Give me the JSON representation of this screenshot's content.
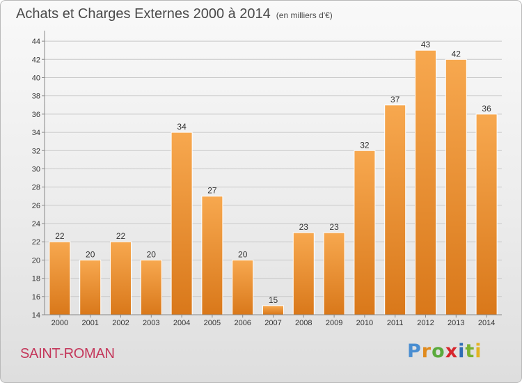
{
  "title": "Achats et Charges Externes 2000 à 2014",
  "unit": "(en milliers d'€)",
  "commune": "SAINT-ROMAN",
  "logo": {
    "text": "Proxiti",
    "colors": [
      "#4a8ed1",
      "#e08a1d",
      "#5aaa3c",
      "#d7262d",
      "#2f6db5",
      "#7ab22f",
      "#e3b321"
    ]
  },
  "colors": {
    "bar_light": "#f7a84f",
    "bar_dark": "#d9781a",
    "grid": "#c8c8c8",
    "axis_text": "#333333",
    "commune": "#c4365a"
  },
  "chart_data": {
    "type": "bar",
    "categories": [
      "2000",
      "2001",
      "2002",
      "2003",
      "2004",
      "2005",
      "2006",
      "2007",
      "2008",
      "2009",
      "2010",
      "2011",
      "2012",
      "2013",
      "2014"
    ],
    "values": [
      22,
      20,
      22,
      20,
      34,
      27,
      20,
      15,
      23,
      23,
      32,
      37,
      43,
      42,
      36
    ],
    "ylim": [
      14,
      45
    ],
    "yticks": [
      14,
      16,
      18,
      20,
      22,
      24,
      26,
      28,
      30,
      32,
      34,
      36,
      38,
      40,
      42,
      44
    ],
    "grid": true,
    "data_labels": true
  }
}
